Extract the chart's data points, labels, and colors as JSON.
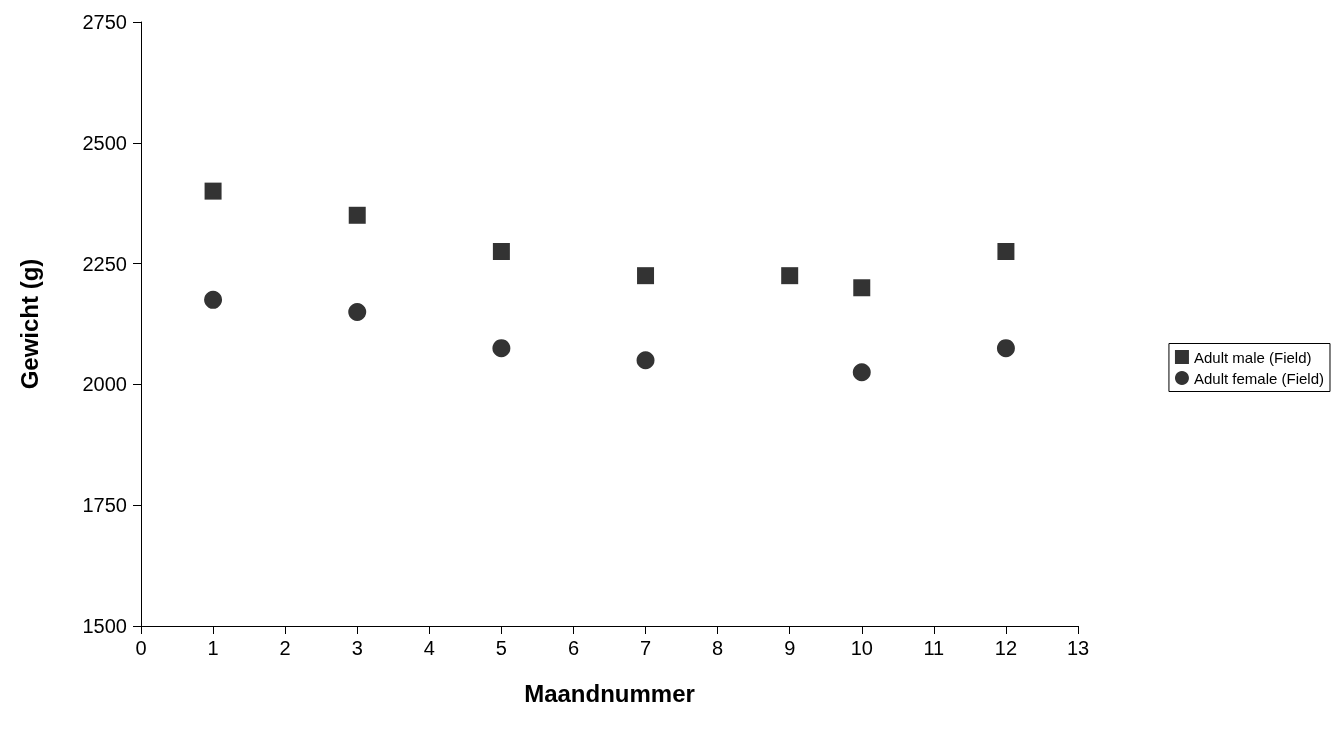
{
  "chart_data": {
    "type": "scatter",
    "xlabel": "Maandnummer",
    "ylabel": "Gewicht (g)",
    "x": [
      1,
      3,
      5,
      7,
      9,
      10,
      12
    ],
    "series": [
      {
        "name": "Adult male (Field)",
        "color": "#000000",
        "marker": "square",
        "values": [
          2400,
          2350,
          2275,
          2225,
          2225,
          2200,
          2275
        ]
      },
      {
        "name": "Adult female (Field)",
        "color": "#000000",
        "marker": "circle",
        "values": [
          2175,
          2150,
          2075,
          2050,
          null,
          2025,
          2075
        ]
      }
    ],
    "xlim": [
      0,
      13
    ],
    "xticks": [
      0,
      1,
      2,
      3,
      4,
      5,
      6,
      7,
      8,
      9,
      10,
      11,
      12,
      13
    ],
    "ylim": [
      1500,
      2750
    ],
    "yticks": [
      1500,
      1750,
      2000,
      2250,
      2500,
      2750
    ],
    "grid": false,
    "legend": "right"
  }
}
